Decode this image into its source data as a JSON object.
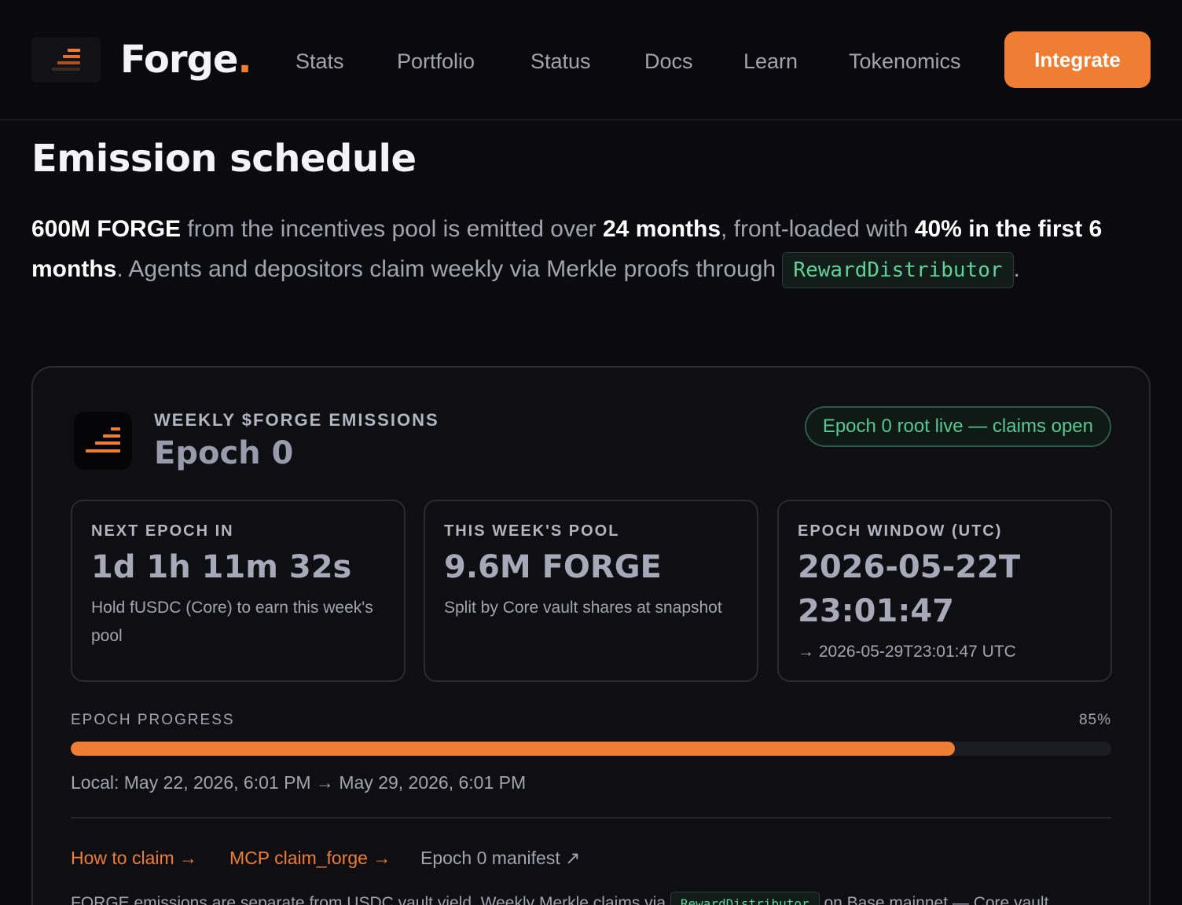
{
  "header": {
    "brand": "Forge",
    "brand_dot": ".",
    "nav": [
      "Stats",
      "Portfolio",
      "Status",
      "Docs",
      "Learn",
      "Tokenomics"
    ],
    "cta": "Integrate",
    "logo_icon": "forge-stack-icon",
    "accent_color": "#ef7d33"
  },
  "section": {
    "title": "Emission schedule",
    "intro": {
      "amount": "600M FORGE",
      "t1": " from the incentives pool is emitted over ",
      "duration": "24 months",
      "t2": ", front-loaded with ",
      "frontload": "40% in the first 6 months",
      "t3": ". Agents and depositors claim weekly via Merkle proofs through ",
      "contract": "RewardDistributor",
      "t4": "."
    }
  },
  "card": {
    "kicker": "WEEKLY $FORGE EMISSIONS",
    "title": "Epoch 0",
    "badge": "Epoch 0 root live — claims open",
    "badge_color": "#58c891",
    "stats": [
      {
        "label": "NEXT EPOCH IN",
        "value": "1d 1h 11m 32s",
        "sub": "Hold fUSDC (Core) to earn this week's pool"
      },
      {
        "label": "THIS WEEK'S POOL",
        "value": "9.6M FORGE",
        "sub": "Split by Core vault shares at snapshot"
      },
      {
        "label": "EPOCH WINDOW (UTC)",
        "value": "2026-05-22T23:01:47",
        "sub": "→ 2026-05-29T23:01:47 UTC"
      }
    ],
    "progress": {
      "label": "EPOCH PROGRESS",
      "percent_text": "85%",
      "percent": 85,
      "local": "Local: May 22, 2026, 6:01 PM → May 29, 2026, 6:01 PM"
    },
    "links": [
      {
        "label": "How to claim →"
      },
      {
        "label": "MCP claim_forge →"
      },
      {
        "label": "Epoch 0 manifest ↗"
      }
    ],
    "footnote": {
      "before": "FORGE emissions are separate from USDC vault yield. Weekly Merkle claims via ",
      "contract": "RewardDistributor",
      "after": " on Base mainnet — Core vault"
    }
  }
}
